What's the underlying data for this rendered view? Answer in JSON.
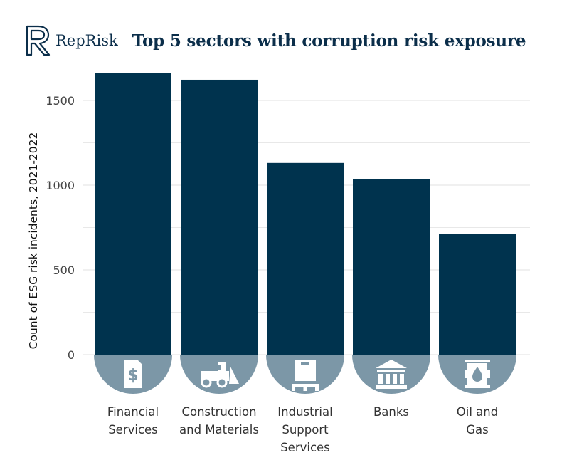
{
  "brand": {
    "name": "RepRisk"
  },
  "chart_data": {
    "type": "bar",
    "title": "Top 5 sectors with corruption risk exposure",
    "ylabel": "Count of ESG risk incidents, 2021-2022",
    "xlabel": "",
    "categories": [
      [
        "Financial",
        "Services"
      ],
      [
        "Construction",
        "and Materials"
      ],
      [
        "Industrial",
        "Support",
        "Services"
      ],
      [
        "Banks"
      ],
      [
        "Oil and",
        "Gas"
      ]
    ],
    "values": [
      1662,
      1622,
      1131,
      1036,
      714
    ],
    "category_icons": [
      "document-dollar-icon",
      "bulldozer-icon",
      "pallet-box-icon",
      "bank-building-icon",
      "oil-barrel-icon"
    ],
    "ylim": [
      0,
      1720
    ],
    "yticks": [
      0,
      500,
      1000,
      1500
    ],
    "grid": true,
    "colors": {
      "bar": "#00334e",
      "icon_circle": "#7c97a7",
      "icon": "#ffffff",
      "grid": "#e8e8e8"
    }
  }
}
